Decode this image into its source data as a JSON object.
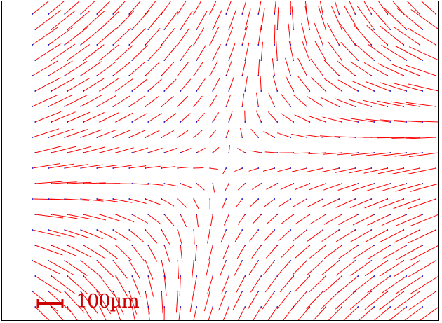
{
  "figure": {
    "scale_bar_label": "100µm",
    "colors": {
      "streak": "#ff0000",
      "seed": "#0000cc",
      "scale_bar": "#cc0000",
      "background": "#ffffff",
      "frame": "#000000"
    }
  }
}
